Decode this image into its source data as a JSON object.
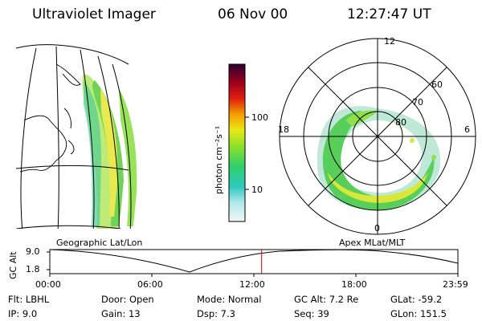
{
  "header": {
    "instrument": "Ultraviolet Imager",
    "date": "06 Nov 00",
    "time": "12:27:47 UT"
  },
  "colorbar": {
    "unit_label": "photon cm⁻²s⁻¹",
    "ticks": [
      "100",
      "10"
    ]
  },
  "polar_plot": {
    "mlat_labels": [
      "80",
      "70",
      "60"
    ],
    "mlt_labels": [
      "12",
      "18",
      "6",
      "0"
    ]
  },
  "panel_labels": {
    "geographic": "Geographic Lat/Lon",
    "magnetic": "Apex MLat/MLT"
  },
  "altitude_plot": {
    "ylabel": "GC Alt",
    "y_ticks": [
      "9.0",
      "1.8"
    ],
    "x_ticks": [
      "00:00",
      "06:00",
      "12:00",
      "18:00",
      "23:59"
    ],
    "marker_time": "12:27",
    "marker_color": "#d00000"
  },
  "status": {
    "flt": "Flt: LBHL",
    "ip": "IP:  9.0",
    "door": "Door: Open",
    "gain": "Gain: 13",
    "mode": "Mode: Normal",
    "dsp": "Dsp:     7.3",
    "gc_alt": "GC Alt: 7.2 Re",
    "seq": "Seq: 39",
    "glat": "GLat: -59.2",
    "glon": "GLon: 151.5"
  }
}
